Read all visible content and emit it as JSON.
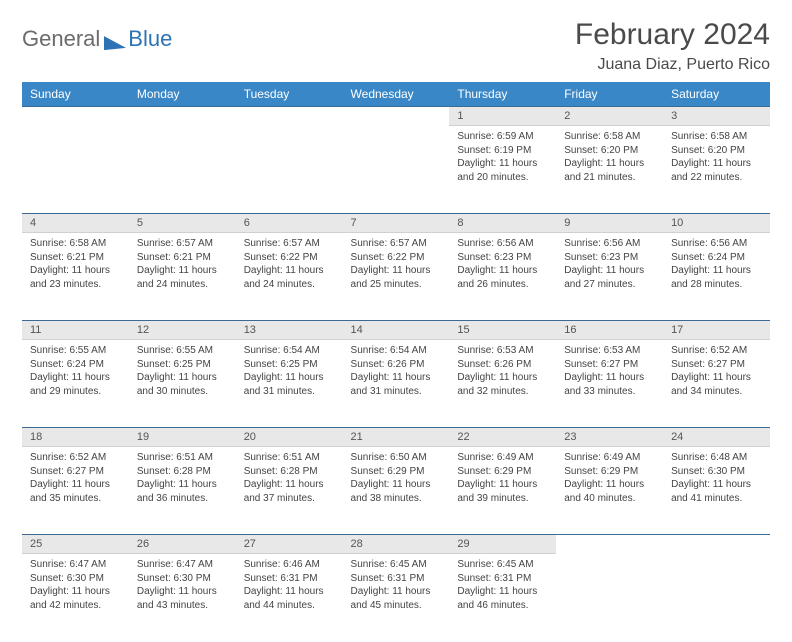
{
  "brand": {
    "general": "General",
    "blue": "Blue"
  },
  "title": "February 2024",
  "location": "Juana Diaz, Puerto Rico",
  "colors": {
    "header_bg": "#3a87c7",
    "header_text": "#ffffff",
    "daynum_bg": "#e8e8e8",
    "row_divider": "#3a6a95",
    "text": "#444444",
    "logo_gray": "#6b6b6b",
    "logo_blue": "#2d72b5"
  },
  "weekdays": [
    "Sunday",
    "Monday",
    "Tuesday",
    "Wednesday",
    "Thursday",
    "Friday",
    "Saturday"
  ],
  "weeks": [
    [
      null,
      null,
      null,
      null,
      {
        "n": "1",
        "sr": "Sunrise: 6:59 AM",
        "ss": "Sunset: 6:19 PM",
        "dl": "Daylight: 11 hours and 20 minutes."
      },
      {
        "n": "2",
        "sr": "Sunrise: 6:58 AM",
        "ss": "Sunset: 6:20 PM",
        "dl": "Daylight: 11 hours and 21 minutes."
      },
      {
        "n": "3",
        "sr": "Sunrise: 6:58 AM",
        "ss": "Sunset: 6:20 PM",
        "dl": "Daylight: 11 hours and 22 minutes."
      }
    ],
    [
      {
        "n": "4",
        "sr": "Sunrise: 6:58 AM",
        "ss": "Sunset: 6:21 PM",
        "dl": "Daylight: 11 hours and 23 minutes."
      },
      {
        "n": "5",
        "sr": "Sunrise: 6:57 AM",
        "ss": "Sunset: 6:21 PM",
        "dl": "Daylight: 11 hours and 24 minutes."
      },
      {
        "n": "6",
        "sr": "Sunrise: 6:57 AM",
        "ss": "Sunset: 6:22 PM",
        "dl": "Daylight: 11 hours and 24 minutes."
      },
      {
        "n": "7",
        "sr": "Sunrise: 6:57 AM",
        "ss": "Sunset: 6:22 PM",
        "dl": "Daylight: 11 hours and 25 minutes."
      },
      {
        "n": "8",
        "sr": "Sunrise: 6:56 AM",
        "ss": "Sunset: 6:23 PM",
        "dl": "Daylight: 11 hours and 26 minutes."
      },
      {
        "n": "9",
        "sr": "Sunrise: 6:56 AM",
        "ss": "Sunset: 6:23 PM",
        "dl": "Daylight: 11 hours and 27 minutes."
      },
      {
        "n": "10",
        "sr": "Sunrise: 6:56 AM",
        "ss": "Sunset: 6:24 PM",
        "dl": "Daylight: 11 hours and 28 minutes."
      }
    ],
    [
      {
        "n": "11",
        "sr": "Sunrise: 6:55 AM",
        "ss": "Sunset: 6:24 PM",
        "dl": "Daylight: 11 hours and 29 minutes."
      },
      {
        "n": "12",
        "sr": "Sunrise: 6:55 AM",
        "ss": "Sunset: 6:25 PM",
        "dl": "Daylight: 11 hours and 30 minutes."
      },
      {
        "n": "13",
        "sr": "Sunrise: 6:54 AM",
        "ss": "Sunset: 6:25 PM",
        "dl": "Daylight: 11 hours and 31 minutes."
      },
      {
        "n": "14",
        "sr": "Sunrise: 6:54 AM",
        "ss": "Sunset: 6:26 PM",
        "dl": "Daylight: 11 hours and 31 minutes."
      },
      {
        "n": "15",
        "sr": "Sunrise: 6:53 AM",
        "ss": "Sunset: 6:26 PM",
        "dl": "Daylight: 11 hours and 32 minutes."
      },
      {
        "n": "16",
        "sr": "Sunrise: 6:53 AM",
        "ss": "Sunset: 6:27 PM",
        "dl": "Daylight: 11 hours and 33 minutes."
      },
      {
        "n": "17",
        "sr": "Sunrise: 6:52 AM",
        "ss": "Sunset: 6:27 PM",
        "dl": "Daylight: 11 hours and 34 minutes."
      }
    ],
    [
      {
        "n": "18",
        "sr": "Sunrise: 6:52 AM",
        "ss": "Sunset: 6:27 PM",
        "dl": "Daylight: 11 hours and 35 minutes."
      },
      {
        "n": "19",
        "sr": "Sunrise: 6:51 AM",
        "ss": "Sunset: 6:28 PM",
        "dl": "Daylight: 11 hours and 36 minutes."
      },
      {
        "n": "20",
        "sr": "Sunrise: 6:51 AM",
        "ss": "Sunset: 6:28 PM",
        "dl": "Daylight: 11 hours and 37 minutes."
      },
      {
        "n": "21",
        "sr": "Sunrise: 6:50 AM",
        "ss": "Sunset: 6:29 PM",
        "dl": "Daylight: 11 hours and 38 minutes."
      },
      {
        "n": "22",
        "sr": "Sunrise: 6:49 AM",
        "ss": "Sunset: 6:29 PM",
        "dl": "Daylight: 11 hours and 39 minutes."
      },
      {
        "n": "23",
        "sr": "Sunrise: 6:49 AM",
        "ss": "Sunset: 6:29 PM",
        "dl": "Daylight: 11 hours and 40 minutes."
      },
      {
        "n": "24",
        "sr": "Sunrise: 6:48 AM",
        "ss": "Sunset: 6:30 PM",
        "dl": "Daylight: 11 hours and 41 minutes."
      }
    ],
    [
      {
        "n": "25",
        "sr": "Sunrise: 6:47 AM",
        "ss": "Sunset: 6:30 PM",
        "dl": "Daylight: 11 hours and 42 minutes."
      },
      {
        "n": "26",
        "sr": "Sunrise: 6:47 AM",
        "ss": "Sunset: 6:30 PM",
        "dl": "Daylight: 11 hours and 43 minutes."
      },
      {
        "n": "27",
        "sr": "Sunrise: 6:46 AM",
        "ss": "Sunset: 6:31 PM",
        "dl": "Daylight: 11 hours and 44 minutes."
      },
      {
        "n": "28",
        "sr": "Sunrise: 6:45 AM",
        "ss": "Sunset: 6:31 PM",
        "dl": "Daylight: 11 hours and 45 minutes."
      },
      {
        "n": "29",
        "sr": "Sunrise: 6:45 AM",
        "ss": "Sunset: 6:31 PM",
        "dl": "Daylight: 11 hours and 46 minutes."
      },
      null,
      null
    ]
  ]
}
